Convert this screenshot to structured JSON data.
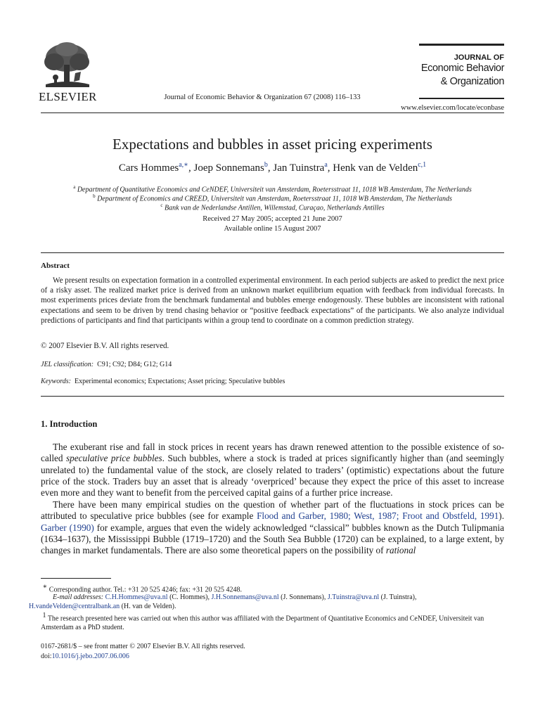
{
  "header": {
    "publisher": "ELSEVIER",
    "journal_citation": "Journal of Economic Behavior & Organization 67 (2008) 116–133",
    "journal_logo": {
      "line1": "JOURNAL OF",
      "line2": "Economic Behavior",
      "line3": "& Organization"
    },
    "url": "www.elsevier.com/locate/econbase"
  },
  "article": {
    "title": "Expectations and bubbles in asset pricing experiments",
    "authors": [
      {
        "name": "Cars Hommes",
        "marks": "a,∗"
      },
      {
        "name": "Joep Sonnemans",
        "marks": "b"
      },
      {
        "name": "Jan Tuinstra",
        "marks": "a"
      },
      {
        "name": "Henk van de Velden",
        "marks": "c,1"
      }
    ],
    "affiliations": [
      {
        "mark": "a",
        "text": "Department of Quantitative Economics and CeNDEF, Universiteit van Amsterdam, Roetersstraat 11, 1018 WB Amsterdam, The Netherlands"
      },
      {
        "mark": "b",
        "text": "Department of Economics and CREED, Universiteit van Amsterdam, Roetersstraat 11, 1018 WB Amsterdam, The Netherlands"
      },
      {
        "mark": "c",
        "text": "Bank van de Nederlandse Antillen, Willemstad, Curaçao, Netherlands Antilles"
      }
    ],
    "received": "Received 27 May 2005; accepted 21 June 2007",
    "available": "Available online 15 August 2007"
  },
  "abstract": {
    "heading": "Abstract",
    "text": "We present results on expectation formation in a controlled experimental environment. In each period subjects are asked to predict the next price of a risky asset. The realized market price is derived from an unknown market equilibrium equation with feedback from individual forecasts. In most experiments prices deviate from the benchmark fundamental and bubbles emerge endogenously. These bubbles are inconsistent with rational expectations and seem to be driven by trend chasing behavior or “positive feedback expectations” of the participants. We also analyze individual predictions of participants and find that participants within a group tend to coordinate on a common prediction strategy.",
    "copyright": "© 2007 Elsevier B.V. All rights reserved.",
    "jel_label": "JEL classification:",
    "jel_codes": "C91; C92; D84; G12; G14",
    "keywords_label": "Keywords:",
    "keywords": "Experimental economics; Expectations; Asset pricing; Speculative bubbles"
  },
  "intro": {
    "heading": "1.  Introduction",
    "p1_a": "The exuberant rise and fall in stock prices in recent years has drawn renewed attention to the possible existence of so-called ",
    "p1_em": "speculative price bubbles",
    "p1_b": ". Such bubbles, where a stock is traded at prices significantly higher than (and seemingly unrelated to) the fundamental value of the stock, are closely related to traders’ (optimistic) expectations about the future price of the stock. Traders buy an asset that is already ‘overpriced’ because they expect the price of this asset to increase even more and they want to benefit from the perceived capital gains of a further price increase.",
    "p2_a": "There have been many empirical studies on the question of whether part of the fluctuations in stock prices can be attributed to speculative price bubbles (see for example ",
    "p2_link1": "Flood and Garber, 1980; West, 1987; Froot and Obstfeld, 1991",
    "p2_b": "). ",
    "p2_link2": "Garber (1990)",
    "p2_c": " for example, argues that even the widely acknowledged “classical” bubbles known as the Dutch Tulipmania (1634–1637), the Mississippi Bubble (1719–1720) and the South Sea Bubble (1720) can be explained, to a large extent, by changes in market fundamentals. There are also some theoretical papers on the possibility of ",
    "p2_em": "rational"
  },
  "footnotes": {
    "star_mark": "∗",
    "star_text": "Corresponding author. Tel.: +31 20 525 4246; fax: +31 20 525 4248.",
    "email_label": "E-mail addresses:",
    "email1": "C.H.Hommes@uva.nl",
    "email1_who": " (C. Hommes), ",
    "email2": "J.H.Sonnemans@uva.nl",
    "email2_who": " (J. Sonnemans), ",
    "email3": "J.Tuinstra@uva.nl",
    "email3_who": " (J. Tuinstra),",
    "email4": "H.vandeVelden@centralbank.an",
    "email4_who": " (H. van de Velden).",
    "note1_mark": "1",
    "note1_text": "The research presented here was carried out when this author was affiliated with the Department of Quantitative Economics and CeNDEF, Universiteit van Amsterdam as a PhD student."
  },
  "footer": {
    "issn": "0167-2681/$ – see front matter © 2007 Elsevier B.V. All rights reserved.",
    "doi_label": "doi:",
    "doi": "10.1016/j.jebo.2007.06.006"
  }
}
